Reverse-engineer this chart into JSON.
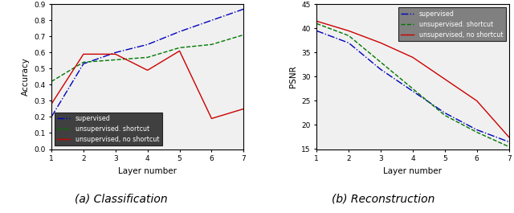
{
  "layers": [
    1,
    2,
    3,
    4,
    5,
    6,
    7
  ],
  "class_supervised": [
    0.2,
    0.53,
    0.6,
    0.65,
    0.73,
    0.8,
    0.87
  ],
  "class_unsup_shortcut": [
    0.42,
    0.54,
    0.555,
    0.57,
    0.63,
    0.65,
    0.71
  ],
  "class_unsup_noshortcut": [
    0.28,
    0.59,
    0.59,
    0.49,
    0.61,
    0.19,
    0.25
  ],
  "recon_supervised": [
    39.5,
    37.0,
    31.5,
    27.0,
    22.5,
    19.0,
    16.5
  ],
  "recon_unsup_shortcut": [
    41.0,
    38.5,
    33.0,
    27.5,
    22.0,
    18.5,
    15.5
  ],
  "recon_unsup_noshortcut": [
    41.5,
    39.5,
    37.0,
    34.0,
    29.5,
    25.0,
    17.5
  ],
  "color_supervised": "#0000bb",
  "color_unsup_shortcut": "#007700",
  "color_unsup_noshortcut": "#cc0000",
  "label_supervised": "supervised",
  "label_shortcut": "unsupervised. shortcut",
  "label_noshortcut": "unsupervised, no shortcut",
  "class_ylabel": "Accuracy",
  "recon_ylabel": "PSNR",
  "xlabel": "Layer number",
  "class_ylim": [
    0.0,
    0.9
  ],
  "recon_ylim": [
    15,
    45
  ],
  "class_yticks": [
    0.0,
    0.1,
    0.2,
    0.3,
    0.4,
    0.5,
    0.6,
    0.7,
    0.8,
    0.9
  ],
  "recon_yticks": [
    15,
    20,
    25,
    30,
    35,
    40,
    45
  ],
  "caption_left": "(a) Classification",
  "caption_right": "(b) Reconstruction",
  "bg_color": "#f0f0f0",
  "legend_bg_left": "#404040",
  "legend_bg_right": "#808080"
}
